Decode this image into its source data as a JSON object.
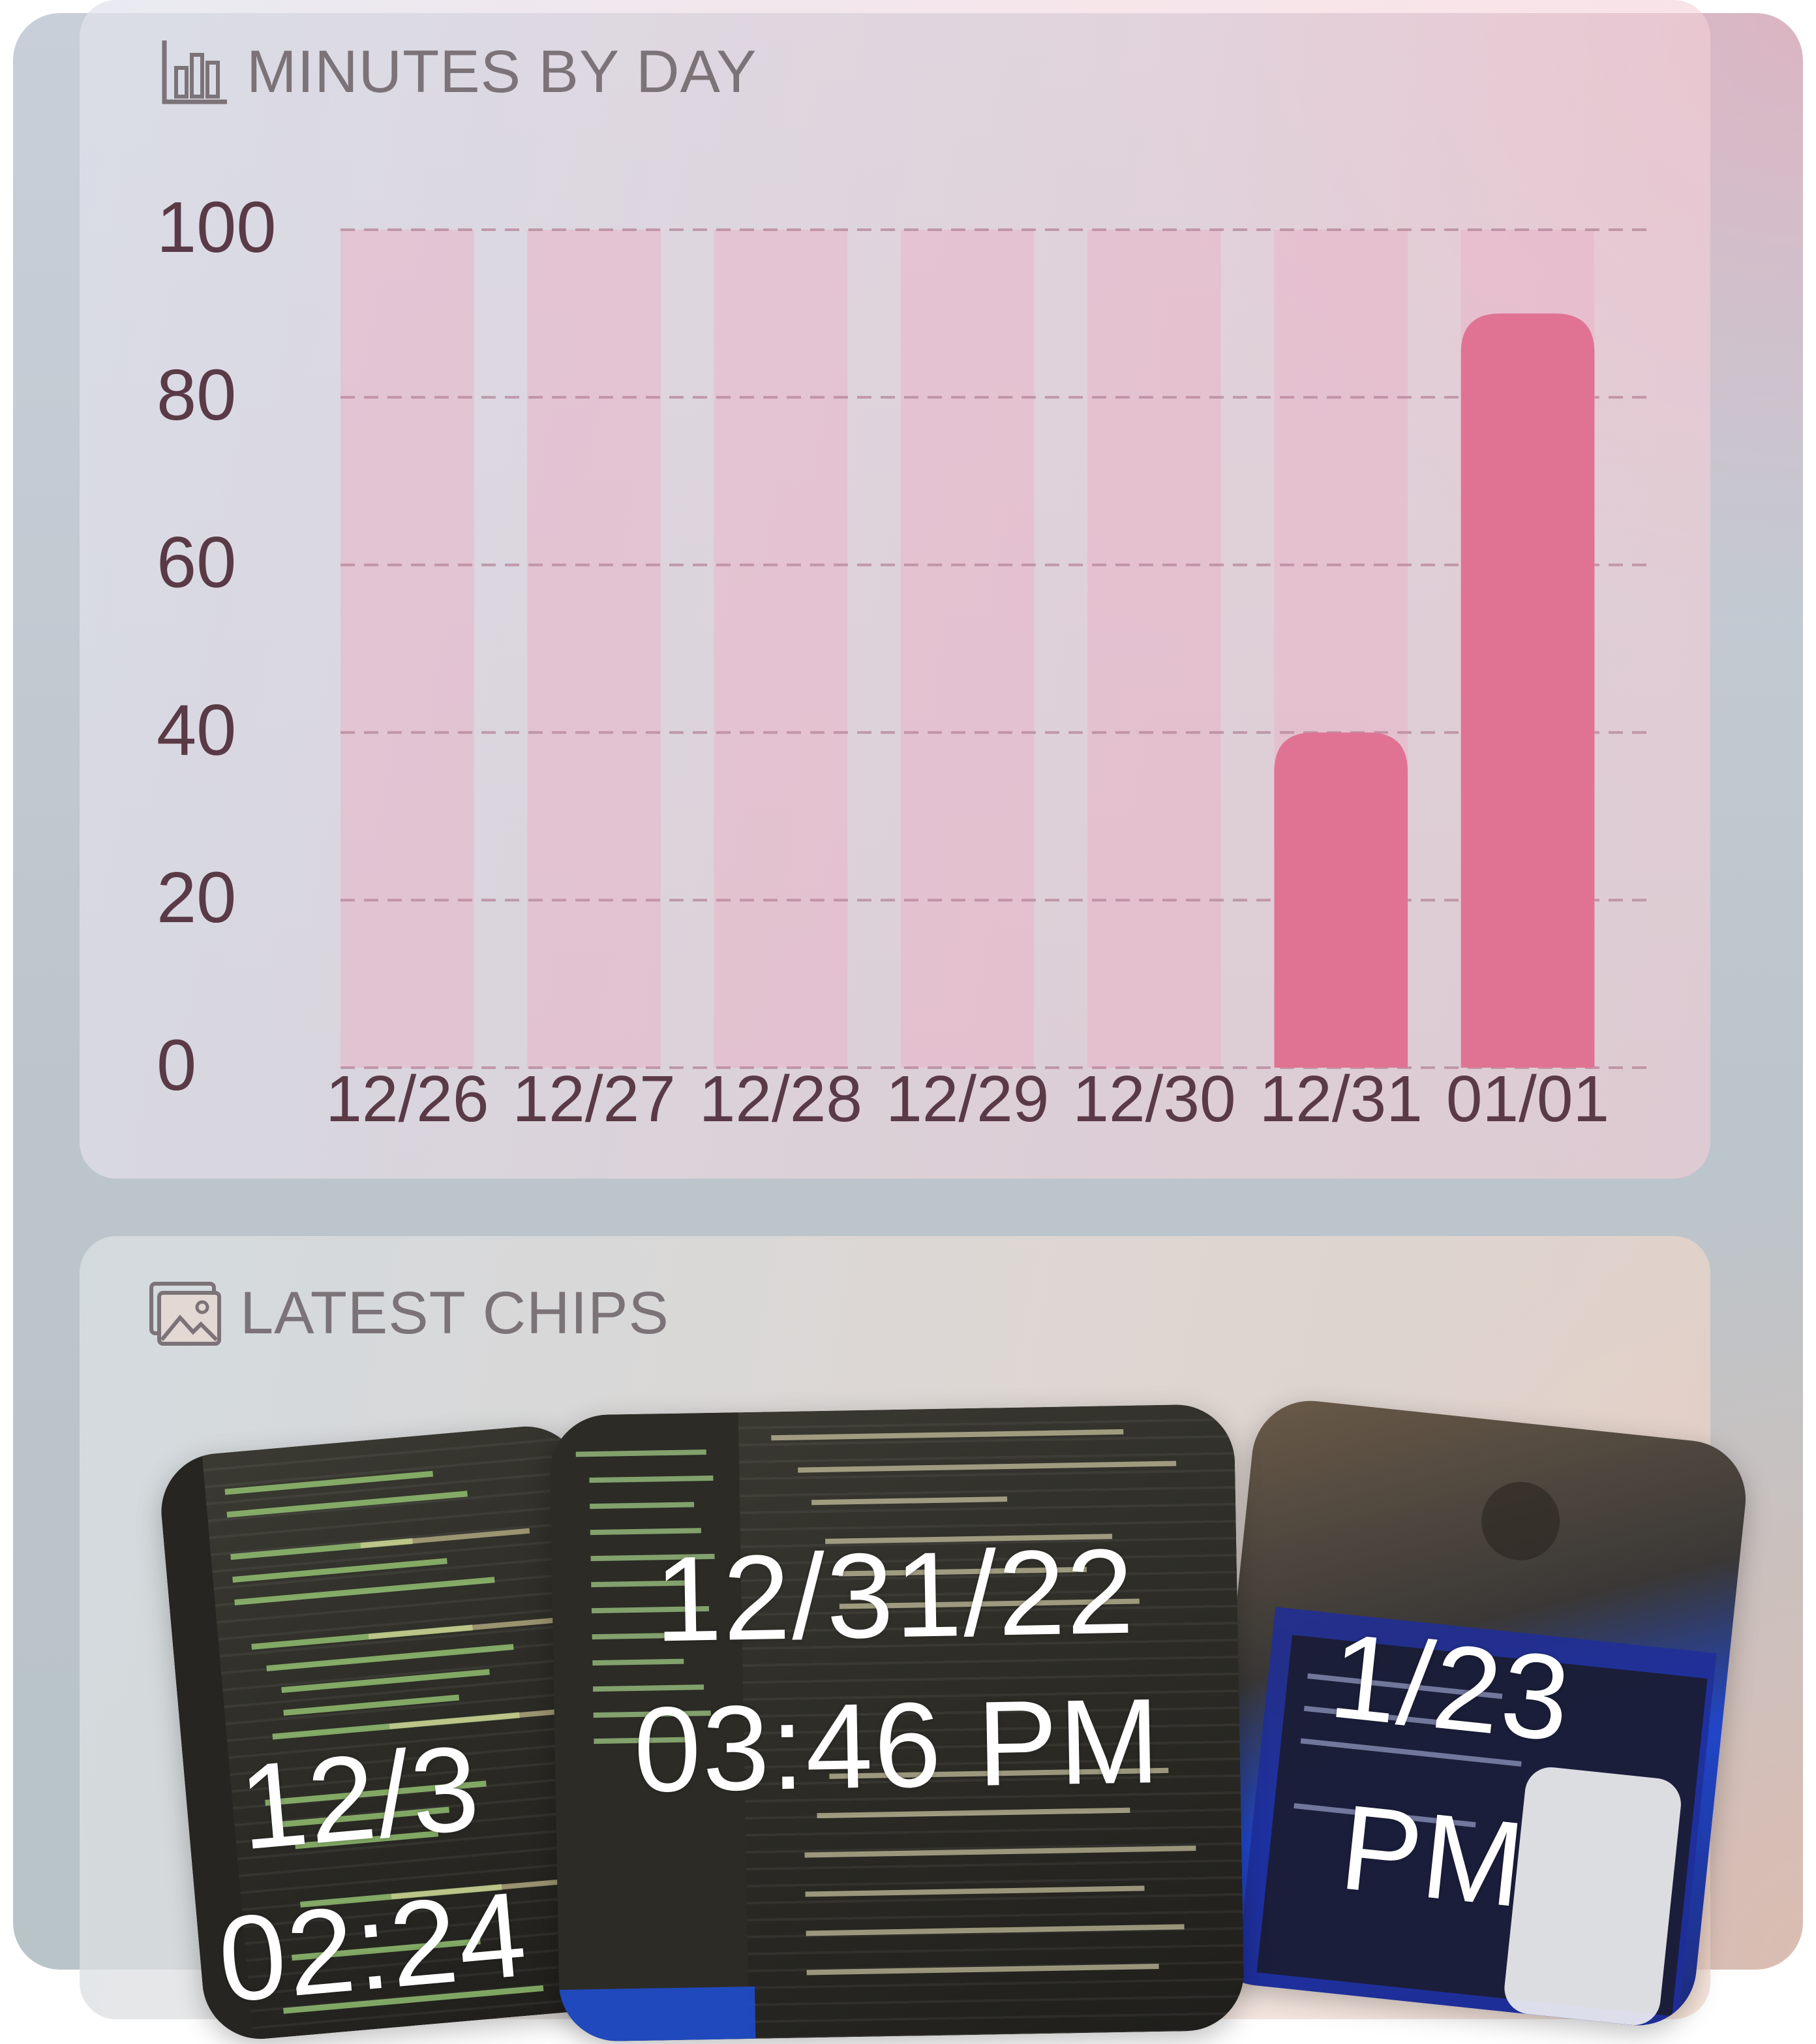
{
  "minutes_card": {
    "title": "MINUTES BY DAY",
    "icon": "bar-chart-icon"
  },
  "chart_data": {
    "type": "bar",
    "title": "MINUTES BY DAY",
    "categories": [
      "12/26",
      "12/27",
      "12/28",
      "12/29",
      "12/30",
      "12/31",
      "01/01"
    ],
    "values": [
      0,
      0,
      0,
      0,
      0,
      40,
      90
    ],
    "ylim": [
      0,
      100
    ],
    "yticks": [
      0,
      20,
      40,
      60,
      80,
      100
    ],
    "grid": true,
    "colors": {
      "bar": "#e07394",
      "track": "#e9b5c8",
      "grid": "#b88a9c",
      "label": "#5a3a46"
    }
  },
  "chips_card": {
    "title": "LATEST CHIPS",
    "icon": "image-gallery-icon",
    "chips": [
      {
        "date": "12/3",
        "time": "02:24"
      },
      {
        "date": "12/31/22",
        "time": "03:46 PM"
      },
      {
        "date": "1/23",
        "time": "PM"
      }
    ]
  }
}
